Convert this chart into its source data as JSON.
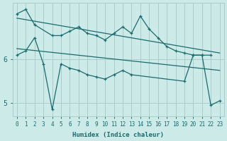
{
  "xlabel": "Humidex (Indice chaleur)",
  "bg_color": "#cceae8",
  "grid_color": "#aaccca",
  "line_color": "#1a6b6b",
  "ylim": [
    4.7,
    7.3
  ],
  "xlim": [
    -0.5,
    23.5
  ],
  "yticks": [
    5,
    6
  ],
  "xticks": [
    0,
    1,
    2,
    3,
    4,
    5,
    6,
    7,
    8,
    9,
    10,
    11,
    12,
    13,
    14,
    15,
    16,
    17,
    18,
    19,
    20,
    21,
    22,
    23
  ],
  "series1_x": [
    0,
    1,
    2,
    4,
    5,
    6,
    7,
    8,
    9,
    10,
    11,
    12,
    13,
    14,
    15,
    16,
    17,
    18,
    19,
    20,
    21,
    22
  ],
  "series1_y": [
    7.05,
    7.15,
    6.8,
    6.55,
    6.55,
    6.65,
    6.75,
    6.6,
    6.55,
    6.45,
    6.6,
    6.75,
    6.6,
    7.0,
    6.7,
    6.5,
    6.3,
    6.2,
    6.15,
    6.1,
    6.1,
    6.1
  ],
  "series2_x": [
    0,
    1,
    2,
    3,
    4,
    5,
    6,
    7,
    8,
    9,
    10,
    11,
    12,
    13,
    19,
    20,
    21,
    22,
    23
  ],
  "series2_y": [
    6.1,
    6.2,
    6.5,
    5.9,
    4.85,
    5.9,
    5.8,
    5.75,
    5.65,
    5.6,
    5.55,
    5.65,
    5.75,
    5.65,
    5.5,
    6.1,
    6.1,
    4.95,
    5.05
  ],
  "trend1_x": [
    0,
    23
  ],
  "trend1_y": [
    6.95,
    6.15
  ],
  "trend2_x": [
    0,
    23
  ],
  "trend2_y": [
    6.25,
    5.75
  ]
}
